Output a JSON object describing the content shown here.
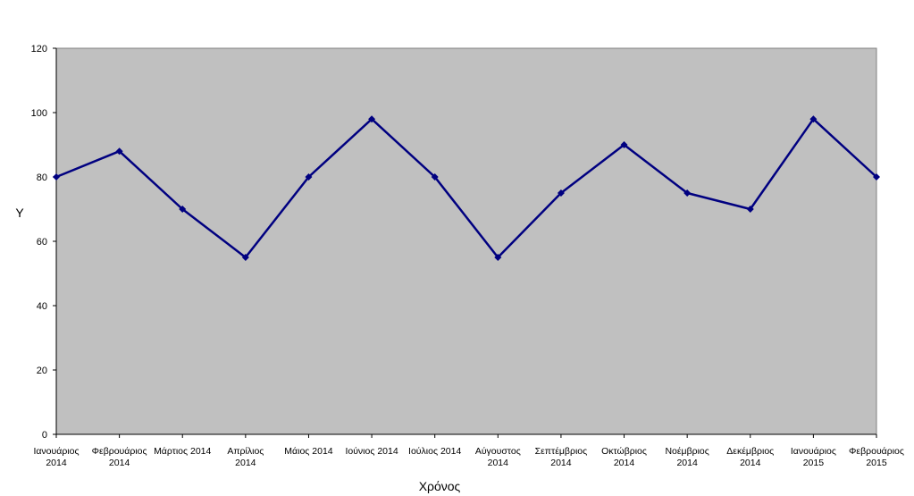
{
  "chart_data": {
    "type": "line",
    "title": "",
    "xlabel": "Χρόνος",
    "ylabel": "Υ",
    "ylim": [
      0,
      120
    ],
    "yticks": [
      "0",
      "20",
      "40",
      "60",
      "80",
      "100",
      "120"
    ],
    "grid": false,
    "legend": "none",
    "categories": [
      [
        "Ιανουάριος",
        "2014"
      ],
      [
        "Φεβρουάριος",
        "2014"
      ],
      [
        "Μάρτιος 2014"
      ],
      [
        "Απρίλιος",
        "2014"
      ],
      [
        "Μάιος 2014"
      ],
      [
        "Ιούνιος 2014"
      ],
      [
        "Ιούλιος 2014"
      ],
      [
        "Αύγουστος",
        "2014"
      ],
      [
        "Σεπτέμβριος",
        "2014"
      ],
      [
        "Οκτώβριος",
        "2014"
      ],
      [
        "Νοέμβριος",
        "2014"
      ],
      [
        "Δεκέμβριος",
        "2014"
      ],
      [
        "Ιανουάριος",
        "2015"
      ],
      [
        "Φεβρουάριος",
        "2015"
      ]
    ],
    "series": [
      {
        "values": [
          80,
          88,
          70,
          55,
          80,
          98,
          80,
          55,
          75,
          90,
          75,
          70,
          98,
          80
        ]
      }
    ],
    "colors": {
      "plot_background": "#c0c0c0",
      "line": "#000080",
      "axis": "#000000"
    }
  }
}
